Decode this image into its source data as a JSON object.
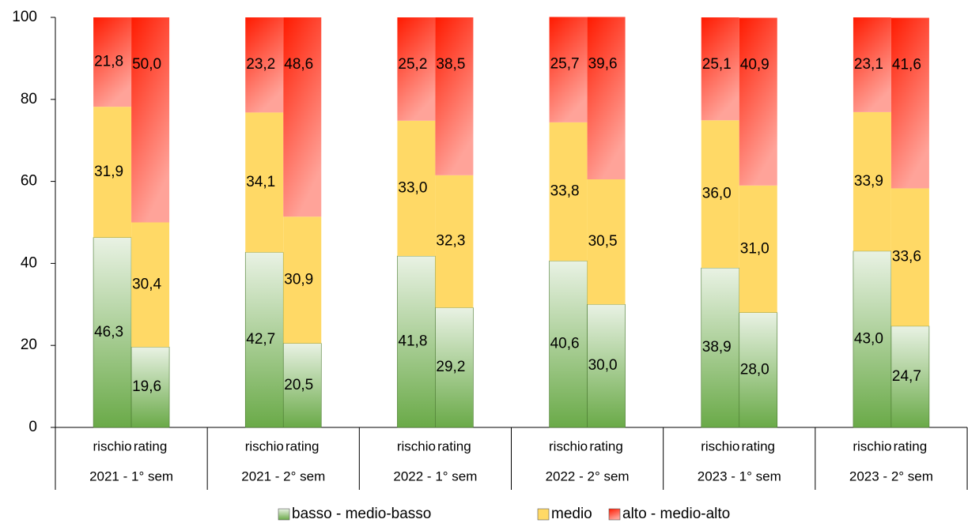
{
  "chart_data": {
    "type": "stacked_bar",
    "groups": [
      "2021 - 1° sem",
      "2021 - 2° sem",
      "2022 - 1° sem",
      "2022 - 2° sem",
      "2023 - 1° sem",
      "2023 - 2° sem"
    ],
    "categories": [
      "rischio",
      "rating",
      "rischio",
      "rating",
      "rischio",
      "rating",
      "rischio",
      "rating",
      "rischio",
      "rating",
      "rischio",
      "rating"
    ],
    "series": [
      {
        "name": "basso - medio-basso",
        "color": "#6aaa48",
        "values": [
          46.3,
          19.6,
          42.7,
          20.5,
          41.8,
          29.2,
          40.6,
          30.0,
          38.9,
          28.0,
          43.0,
          24.7
        ],
        "value_labels": [
          "46,3",
          "19,6",
          "42,7",
          "20,5",
          "41,8",
          "29,2",
          "40,6",
          "30,0",
          "38,9",
          "28,0",
          "43,0",
          "24,7"
        ]
      },
      {
        "name": "medio",
        "color": "#ffd966",
        "values": [
          31.9,
          30.4,
          34.1,
          30.9,
          33.0,
          32.3,
          33.8,
          30.5,
          36.0,
          31.0,
          33.9,
          33.6
        ],
        "value_labels": [
          "31,9",
          "30,4",
          "34,1",
          "30,9",
          "33,0",
          "32,3",
          "33,8",
          "30,5",
          "36,0",
          "31,0",
          "33,9",
          "33,6"
        ]
      },
      {
        "name": "alto - medio-alto",
        "color": "#ff1a00",
        "values": [
          21.8,
          50.0,
          23.2,
          48.6,
          25.2,
          38.5,
          25.7,
          39.6,
          25.1,
          40.9,
          23.1,
          41.6
        ],
        "value_labels": [
          "21,8",
          "50,0",
          "23,2",
          "48,6",
          "25,2",
          "38,5",
          "25,7",
          "39,6",
          "25,1",
          "40,9",
          "23,1",
          "41,6"
        ]
      }
    ],
    "ylim": [
      0,
      100
    ],
    "yticks": [
      0,
      20,
      40,
      60,
      80,
      100
    ],
    "grid": false,
    "legend": "bottom"
  }
}
